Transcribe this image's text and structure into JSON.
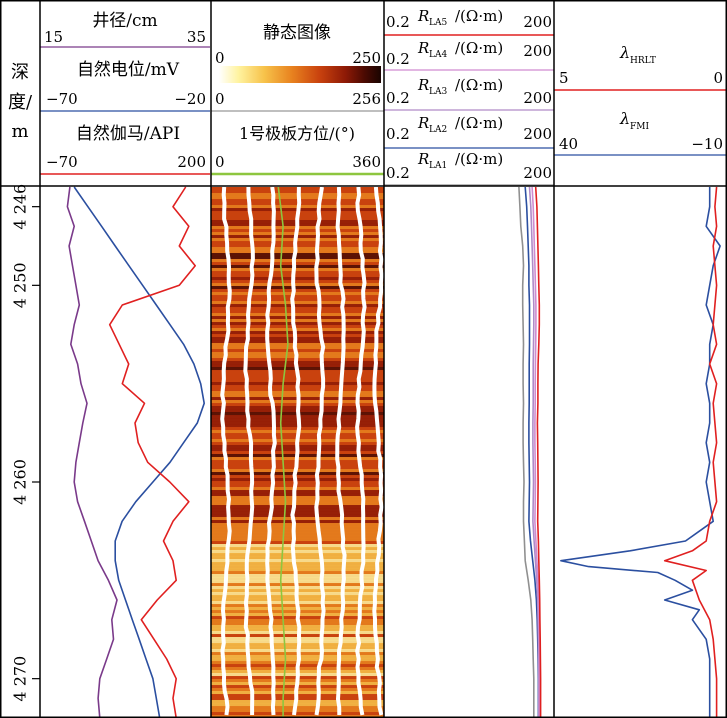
{
  "chart_data": {
    "type": "line",
    "y_axis": {
      "label": "深度/m",
      "label_parts": [
        "深",
        "度/",
        "m"
      ],
      "range": [
        4245,
        4272
      ],
      "ticks": [
        {
          "value": 4246,
          "label": "4 246"
        },
        {
          "value": 4250,
          "label": "4 250"
        },
        {
          "value": 4260,
          "label": "4 260"
        },
        {
          "value": 4270,
          "label": "4 270"
        }
      ]
    },
    "tracks": [
      {
        "id": "track1",
        "curves": [
          {
            "name": "井径/cm",
            "min_label": "15",
            "max_label": "35",
            "range": [
              15,
              35
            ],
            "color": "#7a3a8a",
            "depth": [
              4245,
              4246,
              4247,
              4248,
              4249,
              4250,
              4251,
              4252,
              4253,
              4254,
              4255,
              4256,
              4257,
              4258,
              4259,
              4260,
              4261,
              4262,
              4263,
              4264,
              4265,
              4266,
              4267,
              4268,
              4269,
              4270,
              4271,
              4272
            ],
            "values": [
              18.5,
              18.2,
              19.0,
              18.4,
              18.8,
              19.2,
              19.6,
              19.0,
              18.6,
              19.4,
              19.8,
              20.5,
              20.0,
              19.6,
              19.2,
              19.0,
              19.4,
              20.2,
              21.0,
              21.8,
              23.0,
              24.0,
              23.4,
              23.6,
              22.8,
              22.0,
              21.8,
              22.0
            ]
          },
          {
            "name": "自然电位/mV",
            "min_label": "−70",
            "max_label": "−20",
            "range": [
              -70,
              -20
            ],
            "color": "#2b4fa0",
            "depth": [
              4245,
              4246,
              4247,
              4248,
              4249,
              4250,
              4251,
              4252,
              4253,
              4254,
              4255,
              4256,
              4257,
              4258,
              4259,
              4260,
              4261,
              4262,
              4263,
              4264,
              4265,
              4266,
              4267,
              4268,
              4269,
              4270,
              4271,
              4272
            ],
            "values": [
              -60,
              -56,
              -52,
              -48,
              -44,
              -40,
              -36,
              -32,
              -28,
              -25,
              -23,
              -22,
              -24,
              -28,
              -32,
              -37,
              -42,
              -46,
              -48,
              -48,
              -47,
              -45,
              -43,
              -41,
              -39,
              -37,
              -36,
              -35
            ]
          },
          {
            "name": "自然伽马/API",
            "min_label": "−70",
            "max_label": "200",
            "range": [
              -70,
              200
            ],
            "color": "#e02020",
            "depth": [
              4245,
              4246,
              4247,
              4248,
              4249,
              4250,
              4251,
              4252,
              4253,
              4254,
              4255,
              4256,
              4257,
              4258,
              4259,
              4260,
              4261,
              4262,
              4263,
              4264,
              4265,
              4266,
              4267,
              4268,
              4269,
              4270,
              4271,
              4272
            ],
            "values": [
              160,
              140,
              165,
              150,
              175,
              150,
              60,
              40,
              55,
              70,
              60,
              95,
              80,
              85,
              100,
              135,
              165,
              140,
              125,
              140,
              145,
              115,
              90,
              110,
              130,
              145,
              140,
              145
            ]
          }
        ]
      },
      {
        "id": "track2",
        "image": {
          "title": "静态图像",
          "scale_labels_top": [
            "0",
            "250"
          ],
          "scale_labels_bottom": [
            "0",
            "256"
          ],
          "colors": [
            "#ffffff",
            "#fff3a0",
            "#f7c24a",
            "#e8821f",
            "#c9420e",
            "#8e1a06",
            "#4a0a02",
            "#1a0401"
          ]
        },
        "curves": [
          {
            "name": "1号极板方位/(°)",
            "min_label": "0",
            "max_label": "360",
            "range": [
              0,
              360
            ],
            "color": "#8dc63f",
            "depth": [
              4245,
              4247,
              4249,
              4251,
              4253,
              4255,
              4257,
              4259,
              4261,
              4263,
              4265,
              4267,
              4269,
              4271,
              4272
            ],
            "values": [
              140,
              150,
              145,
              155,
              160,
              150,
              145,
              150,
              155,
              150,
              145,
              150,
              155,
              150,
              150
            ]
          }
        ]
      },
      {
        "id": "track3",
        "curves": [
          {
            "name_main": "R",
            "name_sub": "LA5",
            "unit": "/(Ω·m)",
            "min_label": "0.2",
            "max_label": "200",
            "color": "#e02020",
            "depth": [
              4245,
              4246,
              4247,
              4248,
              4249,
              4250,
              4251,
              4252,
              4253,
              4254,
              4255,
              4256,
              4257,
              4258,
              4259,
              4260,
              4261,
              4262,
              4263,
              4264,
              4265,
              4266,
              4267,
              4268,
              4269,
              4270,
              4271,
              4272
            ],
            "values": [
              95,
              100,
              102,
              104,
              106,
              108,
              110,
              110,
              108,
              105,
              104,
              104,
              102,
              103,
              104,
              105,
              104,
              103,
              106,
              108,
              110,
              112,
              113,
              114,
              115,
              116,
              116,
              116
            ]
          },
          {
            "name_main": "R",
            "name_sub": "LA4",
            "unit": "/(Ω·m)",
            "min_label": "0.2",
            "max_label": "200",
            "color": "#d08ad0",
            "depth": [
              4245,
              4246,
              4247,
              4248,
              4249,
              4250,
              4251,
              4252,
              4253,
              4254,
              4255,
              4256,
              4257,
              4258,
              4259,
              4260,
              4261,
              4262,
              4263,
              4264,
              4265,
              4266,
              4267,
              4268,
              4269,
              4270,
              4271,
              4272
            ],
            "values": [
              82,
              86,
              88,
              90,
              92,
              94,
              96,
              96,
              95,
              94,
              93,
              93,
              92,
              92,
              93,
              94,
              93,
              92,
              96,
              100,
              104,
              107,
              108,
              109,
              110,
              111,
              111,
              111
            ]
          },
          {
            "name_main": "R",
            "name_sub": "LA3",
            "unit": "/(Ω·m)",
            "min_label": "0.2",
            "max_label": "200",
            "color": "#b08ac8",
            "depth": [
              4245,
              4246,
              4247,
              4248,
              4249,
              4250,
              4251,
              4252,
              4253,
              4254,
              4255,
              4256,
              4257,
              4258,
              4259,
              4260,
              4261,
              4262,
              4263,
              4264,
              4265,
              4266,
              4267,
              4268,
              4269,
              4270,
              4271,
              4272
            ],
            "values": [
              74,
              78,
              80,
              82,
              84,
              86,
              88,
              88,
              87,
              86,
              86,
              86,
              85,
              85,
              86,
              87,
              86,
              85,
              89,
              94,
              99,
              103,
              105,
              106,
              107,
              108,
              108,
              108
            ]
          },
          {
            "name_main": "R",
            "name_sub": "LA2",
            "unit": "/(Ω·m)",
            "min_label": "0.2",
            "max_label": "200",
            "color": "#2b4fa0",
            "depth": [
              4245,
              4246,
              4247,
              4248,
              4249,
              4250,
              4251,
              4252,
              4253,
              4254,
              4255,
              4256,
              4257,
              4258,
              4259,
              4260,
              4261,
              4262,
              4263,
              4264,
              4265,
              4266,
              4267,
              4268,
              4269,
              4270,
              4271,
              4272
            ],
            "values": [
              62,
              66,
              68,
              70,
              72,
              72,
              74,
              74,
              74,
              73,
              73,
              73,
              72,
              72,
              73,
              74,
              73,
              72,
              77,
              84,
              92,
              98,
              101,
              103,
              105,
              106,
              106,
              106
            ]
          },
          {
            "name_main": "R",
            "name_sub": "LA1",
            "unit": "/(Ω·m)",
            "min_label": "0.2",
            "max_label": "200",
            "color": "#909090",
            "depth": [
              4245,
              4246,
              4247,
              4248,
              4249,
              4250,
              4251,
              4252,
              4253,
              4254,
              4255,
              4256,
              4257,
              4258,
              4259,
              4260,
              4261,
              4262,
              4263,
              4264,
              4265,
              4266,
              4267,
              4268,
              4269,
              4270,
              4271,
              4272
            ],
            "values": [
              48,
              50,
              52,
              56,
              58,
              56,
              56,
              57,
              58,
              57,
              57,
              58,
              57,
              57,
              58,
              59,
              58,
              58,
              60,
              62,
              70,
              78,
              82,
              84,
              86,
              88,
              88,
              88
            ]
          }
        ]
      },
      {
        "id": "track4",
        "curves": [
          {
            "name_main": "λ",
            "name_sub": "HRLT",
            "min_label": "5",
            "max_label": "0",
            "range": [
              5,
              0
            ],
            "color": "#e02020",
            "depth": [
              4245,
              4246,
              4247,
              4248,
              4249,
              4250,
              4251,
              4252,
              4253,
              4254,
              4255,
              4256,
              4257,
              4258,
              4259,
              4260,
              4261,
              4262,
              4263,
              4263.5,
              4264,
              4264.5,
              4265,
              4266,
              4267,
              4268,
              4269,
              4270,
              4271,
              4272
            ],
            "values": [
              0.3,
              0.35,
              0.3,
              0.4,
              0.35,
              0.3,
              0.35,
              0.4,
              0.3,
              0.5,
              0.3,
              0.4,
              0.35,
              0.3,
              0.4,
              0.35,
              0.3,
              0.5,
              0.6,
              1.0,
              1.8,
              0.6,
              1.0,
              0.8,
              0.5,
              0.4,
              0.35,
              0.3,
              0.3,
              0.3
            ]
          },
          {
            "name_main": "λ",
            "name_sub": "FMI",
            "min_label": "40",
            "max_label": "−10",
            "range": [
              40,
              -10
            ],
            "color": "#2b4fa0",
            "depth": [
              4245,
              4246,
              4247,
              4248,
              4249,
              4250,
              4251,
              4252,
              4253,
              4254,
              4255,
              4256,
              4257,
              4258,
              4259,
              4260,
              4261,
              4262,
              4262.5,
              4263,
              4263.5,
              4264,
              4264.3,
              4264.6,
              4265,
              4265.5,
              4266,
              4266.5,
              4267,
              4268,
              4269,
              4270,
              4271,
              4272
            ],
            "values": [
              -5,
              -5,
              -4,
              -8,
              -6,
              -5,
              -4,
              -6,
              -5,
              -5,
              -4,
              -5,
              -5,
              -4,
              -5,
              -4,
              -5,
              -6,
              -2,
              2,
              18,
              38,
              30,
              10,
              5,
              0,
              8,
              -2,
              0,
              -4,
              -5,
              -5,
              -5,
              -5
            ]
          }
        ]
      }
    ]
  }
}
